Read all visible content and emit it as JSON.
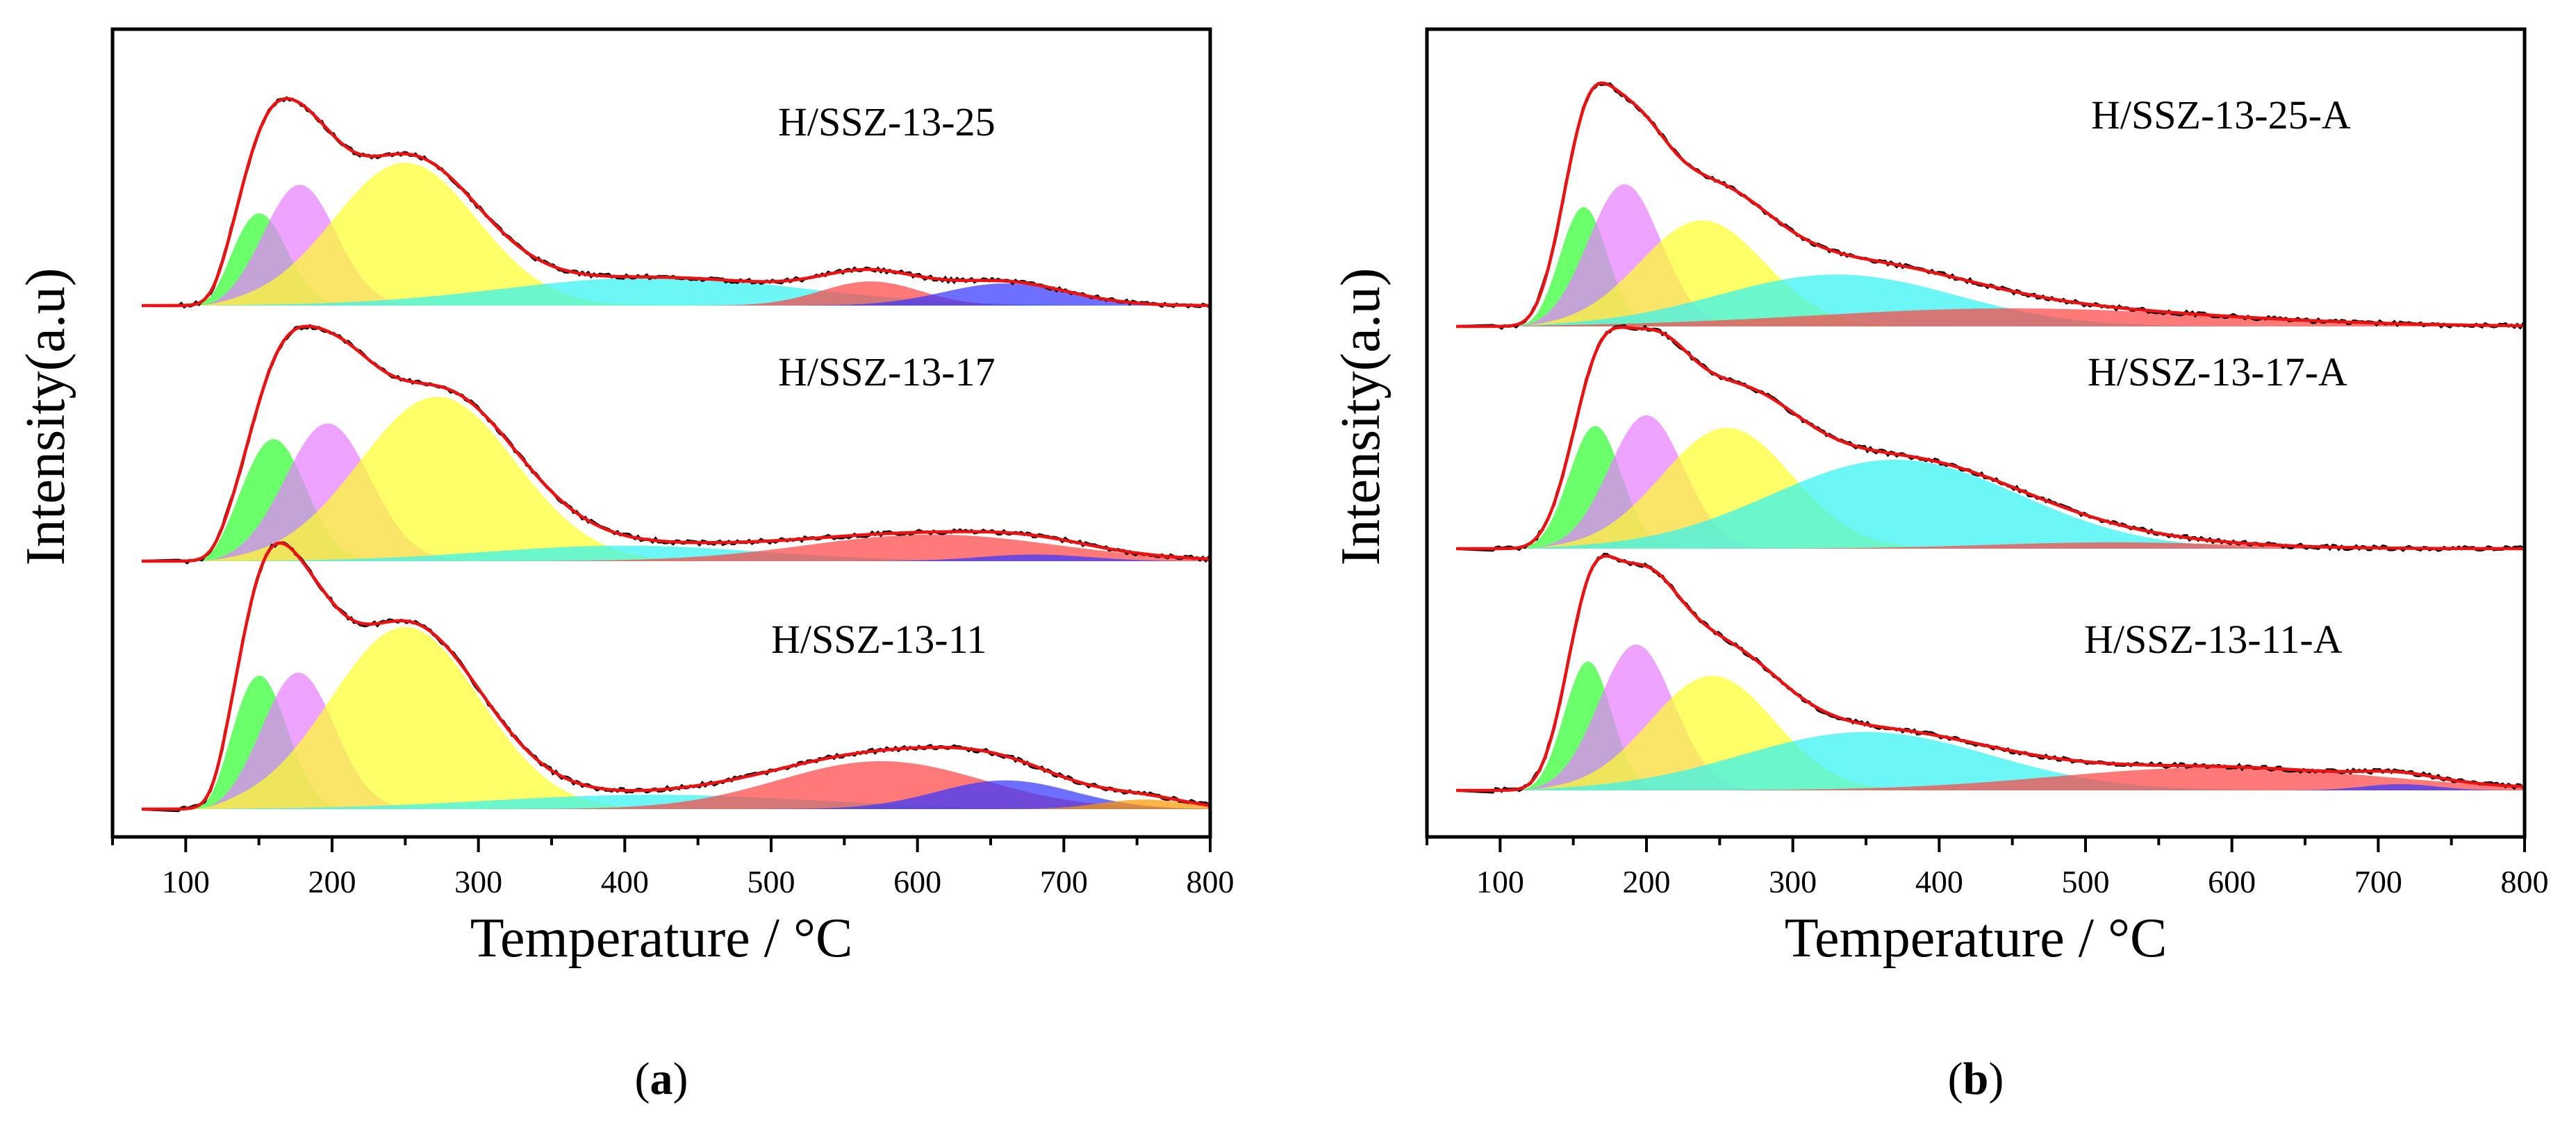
{
  "colors": {
    "green": "#33ff33",
    "violet": "#e680ff",
    "yellow": "#ffff2e",
    "cyan": "#33f2f2",
    "red": "#ff4545",
    "blue": "#3838ff",
    "orange": "#ff9900",
    "measured": "#000000",
    "fit": "#ee1111"
  },
  "chart_data": [
    {
      "type": "line",
      "panel_label": "(a)",
      "panel_letter": "a",
      "xlabel": "Temperature / °C",
      "ylabel": "Intensity(a.u)",
      "xlim": [
        50,
        800
      ],
      "xticks": [
        "100",
        "200",
        "300",
        "400",
        "500",
        "600",
        "700",
        "800"
      ],
      "stacked": true,
      "series": [
        {
          "name": "H/SSZ-13-25",
          "peaks": [
            {
              "color": "green",
              "center": 150,
              "fwhm": 45,
              "height": 0.46
            },
            {
              "color": "violet",
              "center": 178,
              "fwhm": 58,
              "height": 0.6
            },
            {
              "color": "yellow",
              "center": 250,
              "fwhm": 115,
              "height": 0.71
            },
            {
              "color": "cyan",
              "center": 420,
              "fwhm": 240,
              "height": 0.14
            },
            {
              "color": "red",
              "center": 568,
              "fwhm": 80,
              "height": 0.12
            },
            {
              "color": "blue",
              "center": 660,
              "fwhm": 100,
              "height": 0.11
            }
          ]
        },
        {
          "name": "H/SSZ-13-17",
          "peaks": [
            {
              "color": "green",
              "center": 160,
              "fwhm": 52,
              "height": 0.55
            },
            {
              "color": "violet",
              "center": 197,
              "fwhm": 68,
              "height": 0.62
            },
            {
              "color": "yellow",
              "center": 272,
              "fwhm": 125,
              "height": 0.74
            },
            {
              "color": "cyan",
              "center": 400,
              "fwhm": 220,
              "height": 0.07
            },
            {
              "color": "red",
              "center": 610,
              "fwhm": 200,
              "height": 0.12
            },
            {
              "color": "blue",
              "center": 680,
              "fwhm": 90,
              "height": 0.03
            }
          ]
        },
        {
          "name": "H/SSZ-13-11",
          "peaks": [
            {
              "color": "green",
              "center": 150,
              "fwhm": 45,
              "height": 0.56
            },
            {
              "color": "violet",
              "center": 177,
              "fwhm": 58,
              "height": 0.57
            },
            {
              "color": "yellow",
              "center": 250,
              "fwhm": 120,
              "height": 0.76
            },
            {
              "color": "cyan",
              "center": 420,
              "fwhm": 260,
              "height": 0.06
            },
            {
              "color": "red",
              "center": 575,
              "fwhm": 165,
              "height": 0.2
            },
            {
              "color": "blue",
              "center": 660,
              "fwhm": 110,
              "height": 0.12
            },
            {
              "color": "orange",
              "center": 755,
              "fwhm": 70,
              "height": 0.04
            }
          ]
        }
      ]
    },
    {
      "type": "line",
      "panel_label": "(b)",
      "panel_letter": "b",
      "xlabel": "Temperature / °C",
      "ylabel": "Intensity(a.u)",
      "xlim": [
        50,
        800
      ],
      "xticks": [
        "100",
        "200",
        "300",
        "400",
        "500",
        "600",
        "700",
        "800"
      ],
      "stacked": true,
      "series": [
        {
          "name": "H/SSZ-13-25-A",
          "peaks": [
            {
              "color": "green",
              "center": 157,
              "fwhm": 38,
              "height": 0.53
            },
            {
              "color": "violet",
              "center": 185,
              "fwhm": 58,
              "height": 0.63
            },
            {
              "color": "yellow",
              "center": 238,
              "fwhm": 100,
              "height": 0.47
            },
            {
              "color": "cyan",
              "center": 330,
              "fwhm": 190,
              "height": 0.23
            },
            {
              "color": "red",
              "center": 450,
              "fwhm": 320,
              "height": 0.08
            }
          ]
        },
        {
          "name": "H/SSZ-13-17-A",
          "peaks": [
            {
              "color": "green",
              "center": 165,
              "fwhm": 42,
              "height": 0.58
            },
            {
              "color": "violet",
              "center": 200,
              "fwhm": 60,
              "height": 0.63
            },
            {
              "color": "yellow",
              "center": 255,
              "fwhm": 105,
              "height": 0.57
            },
            {
              "color": "cyan",
              "center": 370,
              "fwhm": 200,
              "height": 0.42
            },
            {
              "color": "red",
              "center": 520,
              "fwhm": 200,
              "height": 0.03
            }
          ]
        },
        {
          "name": "H/SSZ-13-11-A",
          "peaks": [
            {
              "color": "green",
              "center": 160,
              "fwhm": 38,
              "height": 0.62
            },
            {
              "color": "violet",
              "center": 193,
              "fwhm": 60,
              "height": 0.7
            },
            {
              "color": "yellow",
              "center": 245,
              "fwhm": 100,
              "height": 0.55
            },
            {
              "color": "cyan",
              "center": 350,
              "fwhm": 200,
              "height": 0.28
            },
            {
              "color": "red",
              "center": 590,
              "fwhm": 260,
              "height": 0.11
            },
            {
              "color": "blue",
              "center": 715,
              "fwhm": 60,
              "height": 0.03
            }
          ]
        }
      ]
    }
  ]
}
